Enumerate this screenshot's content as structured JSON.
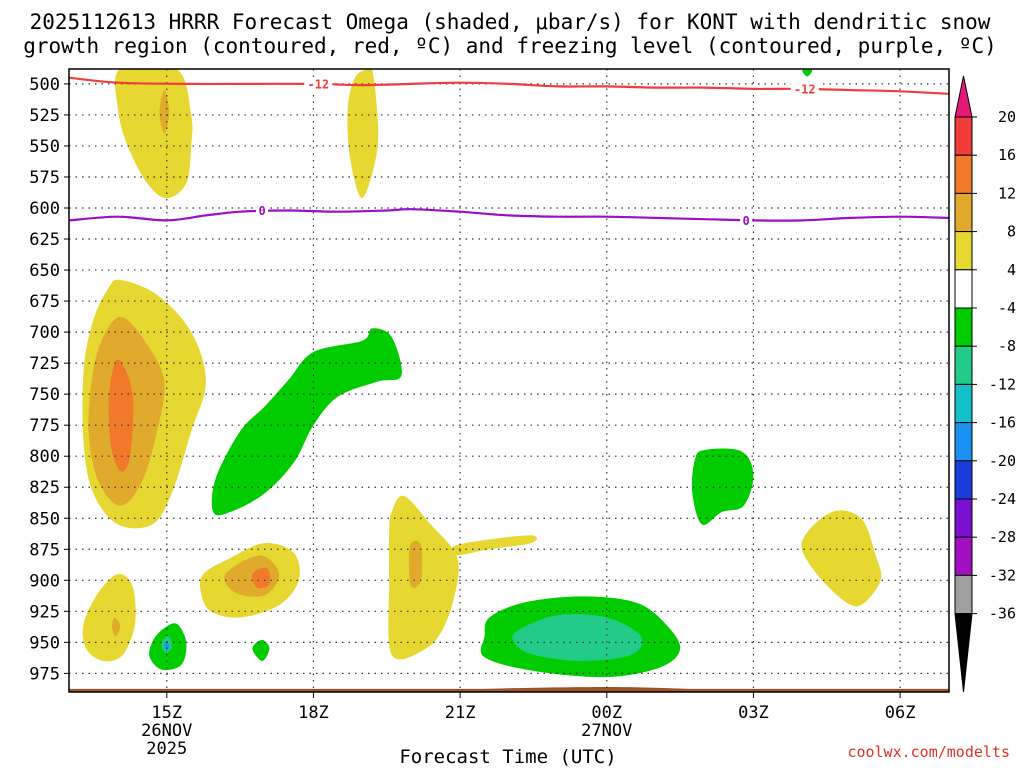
{
  "chart_data": {
    "type": "contour",
    "title_line1": "2025112613 HRRR Forecast Omega (shaded, μbar/s) for KONT with dendritic snow",
    "title_line2": "growth region (contoured, red, ºC) and freezing level (contoured, purple, ºC)",
    "xlabel": "Forecast Time (UTC)",
    "ylabel": "",
    "credit": "coolwx.com/modelts",
    "x_ticks": [
      {
        "hour": 15,
        "label": "15Z",
        "date": "26NOV",
        "year": "2025"
      },
      {
        "hour": 18,
        "label": "18Z",
        "date": "",
        "year": ""
      },
      {
        "hour": 21,
        "label": "21Z",
        "date": "",
        "year": ""
      },
      {
        "hour": 24,
        "label": "00Z",
        "date": "27NOV",
        "year": ""
      },
      {
        "hour": 27,
        "label": "03Z",
        "date": "",
        "year": ""
      },
      {
        "hour": 30,
        "label": "06Z",
        "date": "",
        "year": ""
      }
    ],
    "xlim": [
      13,
      31
    ],
    "y_ticks": [
      500,
      525,
      550,
      575,
      600,
      625,
      650,
      675,
      700,
      725,
      750,
      775,
      800,
      825,
      850,
      875,
      900,
      925,
      950,
      975
    ],
    "ylim": [
      488,
      990
    ],
    "colorbar": {
      "labels": [
        "20",
        "16",
        "12",
        "8",
        "4",
        "-4",
        "-8",
        "-12",
        "-16",
        "-20",
        "-24",
        "-28",
        "-32",
        "-36"
      ],
      "colors": [
        "#e8177a",
        "#f23c3c",
        "#f07a2a",
        "#e0aa2c",
        "#e6d830",
        "#ffffff",
        "#00cc00",
        "#22cc88",
        "#14c0c8",
        "#1a90f0",
        "#1a3cdc",
        "#7a10d0",
        "#a010c0",
        "#a0a0a0",
        "#000000"
      ]
    },
    "shaded_colors": {
      "c4": "#e6d830",
      "c8": "#e0aa2c",
      "c12": "#f07a2a",
      "cm4": "#00cc00",
      "cm8": "#22cc88",
      "cm12": "#14c0c8",
      "cm16": "#1a90f0"
    },
    "contours": [
      {
        "name": "dgz-minus12",
        "label": "-12",
        "color": "#f23c3c",
        "points": [
          [
            13.0,
            495
          ],
          [
            14.0,
            499
          ],
          [
            15.5,
            500
          ],
          [
            16.5,
            500
          ],
          [
            18.0,
            500
          ],
          [
            19.0,
            501
          ],
          [
            20.0,
            500
          ],
          [
            21.0,
            499
          ],
          [
            22.0,
            500
          ],
          [
            23.0,
            502
          ],
          [
            24.0,
            502
          ],
          [
            25.0,
            503
          ],
          [
            26.0,
            503
          ],
          [
            27.0,
            504
          ],
          [
            28.0,
            504
          ],
          [
            29.0,
            505
          ],
          [
            30.0,
            506
          ],
          [
            31.0,
            508
          ]
        ],
        "label_at": [
          [
            18.1,
            500
          ],
          [
            28.05,
            504
          ]
        ]
      },
      {
        "name": "freezing-level",
        "label": "0",
        "color": "#9a10c8",
        "points": [
          [
            13.0,
            610
          ],
          [
            14.0,
            607
          ],
          [
            15.0,
            610
          ],
          [
            15.8,
            606
          ],
          [
            16.5,
            603
          ],
          [
            17.5,
            602
          ],
          [
            18.5,
            603
          ],
          [
            19.5,
            602
          ],
          [
            20.0,
            601
          ],
          [
            21.0,
            603
          ],
          [
            22.0,
            606
          ],
          [
            23.0,
            607
          ],
          [
            24.0,
            607
          ],
          [
            25.0,
            608
          ],
          [
            26.0,
            609
          ],
          [
            27.0,
            610
          ],
          [
            28.0,
            610
          ],
          [
            29.0,
            608
          ],
          [
            30.0,
            607
          ],
          [
            31.0,
            608
          ]
        ],
        "label_at": [
          [
            16.95,
            602
          ],
          [
            26.85,
            610
          ]
        ]
      }
    ],
    "regions": [
      {
        "name": "omega-top-left-4",
        "level": "c4",
        "points": [
          [
            14.05,
            488
          ],
          [
            15.2,
            488
          ],
          [
            15.5,
            525
          ],
          [
            15.5,
            550
          ],
          [
            15.4,
            580
          ],
          [
            15.0,
            592
          ],
          [
            14.6,
            580
          ],
          [
            14.2,
            550
          ],
          [
            14.0,
            520
          ]
        ]
      },
      {
        "name": "omega-top-left-8",
        "level": "c8",
        "points": [
          [
            14.95,
            505
          ],
          [
            15.05,
            523
          ],
          [
            14.95,
            540
          ],
          [
            14.85,
            523
          ]
        ]
      },
      {
        "name": "omega-top-mid-4",
        "level": "c4",
        "points": [
          [
            19.1,
            488
          ],
          [
            19.2,
            488
          ],
          [
            19.3,
            520
          ],
          [
            19.3,
            555
          ],
          [
            19.0,
            592
          ],
          [
            18.75,
            560
          ],
          [
            18.7,
            520
          ],
          [
            18.85,
            495
          ]
        ]
      },
      {
        "name": "omega-left-big-4",
        "level": "c4",
        "points": [
          [
            14.05,
            658
          ],
          [
            14.8,
            670
          ],
          [
            15.5,
            700
          ],
          [
            15.8,
            740
          ],
          [
            15.5,
            780
          ],
          [
            15.1,
            830
          ],
          [
            14.7,
            855
          ],
          [
            14.0,
            855
          ],
          [
            13.5,
            830
          ],
          [
            13.3,
            790
          ],
          [
            13.3,
            730
          ],
          [
            13.5,
            690
          ],
          [
            13.8,
            665
          ]
        ]
      },
      {
        "name": "omega-left-big-8",
        "level": "c8",
        "points": [
          [
            14.1,
            688
          ],
          [
            14.6,
            710
          ],
          [
            14.95,
            740
          ],
          [
            14.8,
            780
          ],
          [
            14.5,
            820
          ],
          [
            14.05,
            840
          ],
          [
            13.6,
            820
          ],
          [
            13.4,
            780
          ],
          [
            13.5,
            730
          ],
          [
            13.75,
            700
          ]
        ]
      },
      {
        "name": "omega-left-big-12",
        "level": "c12",
        "points": [
          [
            14.0,
            722
          ],
          [
            14.3,
            750
          ],
          [
            14.25,
            800
          ],
          [
            14.05,
            812
          ],
          [
            13.85,
            790
          ],
          [
            13.82,
            750
          ]
        ]
      },
      {
        "name": "omega-green-diag",
        "level": "cm4",
        "points": [
          [
            16.0,
            818
          ],
          [
            16.5,
            780
          ],
          [
            17.0,
            760
          ],
          [
            17.5,
            738
          ],
          [
            18.0,
            716
          ],
          [
            19.0,
            707
          ],
          [
            19.2,
            697
          ],
          [
            19.6,
            704
          ],
          [
            19.8,
            735
          ],
          [
            19.3,
            740
          ],
          [
            18.5,
            752
          ],
          [
            18.0,
            775
          ],
          [
            17.6,
            805
          ],
          [
            17.0,
            830
          ],
          [
            16.3,
            845
          ],
          [
            15.95,
            845
          ]
        ]
      },
      {
        "name": "omega-mid-lower-4",
        "level": "c4",
        "points": [
          [
            15.75,
            895
          ],
          [
            16.3,
            882
          ],
          [
            17.0,
            870
          ],
          [
            17.6,
            878
          ],
          [
            17.7,
            900
          ],
          [
            17.3,
            920
          ],
          [
            16.5,
            930
          ],
          [
            15.9,
            925
          ],
          [
            15.7,
            910
          ]
        ]
      },
      {
        "name": "omega-mid-lower-8",
        "level": "c8",
        "points": [
          [
            16.2,
            895
          ],
          [
            16.9,
            880
          ],
          [
            17.3,
            895
          ],
          [
            17.0,
            912
          ],
          [
            16.4,
            910
          ]
        ]
      },
      {
        "name": "omega-mid-lower-12",
        "level": "c12",
        "points": [
          [
            16.75,
            895
          ],
          [
            17.05,
            890
          ],
          [
            17.1,
            903
          ],
          [
            16.85,
            906
          ]
        ]
      },
      {
        "name": "omega-bottom-left-4",
        "level": "c4",
        "points": [
          [
            13.3,
            935
          ],
          [
            13.6,
            910
          ],
          [
            14.0,
            895
          ],
          [
            14.3,
            905
          ],
          [
            14.35,
            935
          ],
          [
            14.1,
            960
          ],
          [
            13.7,
            965
          ],
          [
            13.35,
            955
          ]
        ]
      },
      {
        "name": "omega-bottom-left-8",
        "level": "c8",
        "points": [
          [
            13.93,
            930
          ],
          [
            14.05,
            937
          ],
          [
            13.95,
            945
          ],
          [
            13.88,
            937
          ]
        ]
      },
      {
        "name": "omega-green-small-left",
        "level": "cm4",
        "points": [
          [
            14.7,
            950
          ],
          [
            14.9,
            940
          ],
          [
            15.2,
            935
          ],
          [
            15.4,
            950
          ],
          [
            15.3,
            968
          ],
          [
            14.9,
            972
          ],
          [
            14.65,
            962
          ]
        ]
      },
      {
        "name": "omega-teal-small-left",
        "level": "cm8",
        "points": [
          [
            14.9,
            950
          ],
          [
            15.05,
            945
          ],
          [
            15.1,
            955
          ],
          [
            14.95,
            958
          ]
        ]
      },
      {
        "name": "omega-blue-small-left",
        "level": "cm16",
        "points": [
          [
            14.95,
            950
          ],
          [
            15.05,
            952
          ],
          [
            15.0,
            957
          ]
        ]
      },
      {
        "name": "omega-green-tiny",
        "level": "cm4",
        "points": [
          [
            16.75,
            955
          ],
          [
            16.95,
            948
          ],
          [
            17.1,
            955
          ],
          [
            16.95,
            965
          ]
        ]
      },
      {
        "name": "omega-mid-vert-4",
        "level": "c4",
        "points": [
          [
            19.6,
            845
          ],
          [
            19.85,
            832
          ],
          [
            20.4,
            855
          ],
          [
            20.9,
            878
          ],
          [
            20.95,
            900
          ],
          [
            20.7,
            935
          ],
          [
            20.3,
            955
          ],
          [
            19.6,
            960
          ],
          [
            19.55,
            900
          ],
          [
            19.55,
            860
          ]
        ]
      },
      {
        "name": "omega-mid-vert-8",
        "level": "c8",
        "points": [
          [
            20.0,
            870
          ],
          [
            20.2,
            872
          ],
          [
            20.2,
            900
          ],
          [
            20.0,
            905
          ],
          [
            19.95,
            885
          ]
        ]
      },
      {
        "name": "omega-tail-4",
        "level": "c4",
        "points": [
          [
            20.9,
            872
          ],
          [
            21.8,
            866
          ],
          [
            22.5,
            864
          ],
          [
            22.45,
            870
          ],
          [
            21.6,
            875
          ],
          [
            20.9,
            880
          ]
        ]
      },
      {
        "name": "omega-bottom-green",
        "level": "cm4",
        "points": [
          [
            21.6,
            930
          ],
          [
            22.3,
            918
          ],
          [
            23.5,
            913
          ],
          [
            24.6,
            918
          ],
          [
            25.2,
            935
          ],
          [
            25.5,
            955
          ],
          [
            25.1,
            970
          ],
          [
            24.0,
            978
          ],
          [
            22.5,
            973
          ],
          [
            21.5,
            962
          ],
          [
            21.5,
            945
          ]
        ]
      },
      {
        "name": "omega-bottom-teal",
        "level": "cm8",
        "points": [
          [
            22.2,
            940
          ],
          [
            23.0,
            928
          ],
          [
            24.0,
            930
          ],
          [
            24.7,
            945
          ],
          [
            24.5,
            960
          ],
          [
            23.5,
            965
          ],
          [
            22.5,
            960
          ],
          [
            22.1,
            950
          ]
        ]
      },
      {
        "name": "omega-right-green",
        "level": "cm4",
        "points": [
          [
            25.8,
            803
          ],
          [
            26.0,
            795
          ],
          [
            26.75,
            796
          ],
          [
            27.0,
            815
          ],
          [
            26.8,
            840
          ],
          [
            26.35,
            845
          ],
          [
            25.95,
            855
          ],
          [
            25.75,
            830
          ]
        ]
      },
      {
        "name": "omega-right-yellow",
        "level": "c4",
        "points": [
          [
            28.0,
            868
          ],
          [
            28.6,
            845
          ],
          [
            29.2,
            850
          ],
          [
            29.5,
            880
          ],
          [
            29.6,
            900
          ],
          [
            29.2,
            920
          ],
          [
            28.8,
            915
          ],
          [
            28.2,
            890
          ]
        ]
      },
      {
        "name": "omega-green-top-right",
        "level": "cm4",
        "points": [
          [
            28.0,
            489
          ],
          [
            28.2,
            489
          ],
          [
            28.1,
            494
          ]
        ]
      },
      {
        "name": "omega-surface-bump",
        "level": "surface",
        "points": [
          [
            21.2,
            989
          ],
          [
            22.0,
            987
          ],
          [
            24.0,
            986
          ],
          [
            25.3,
            987
          ],
          [
            25.8,
            989
          ]
        ]
      }
    ]
  }
}
